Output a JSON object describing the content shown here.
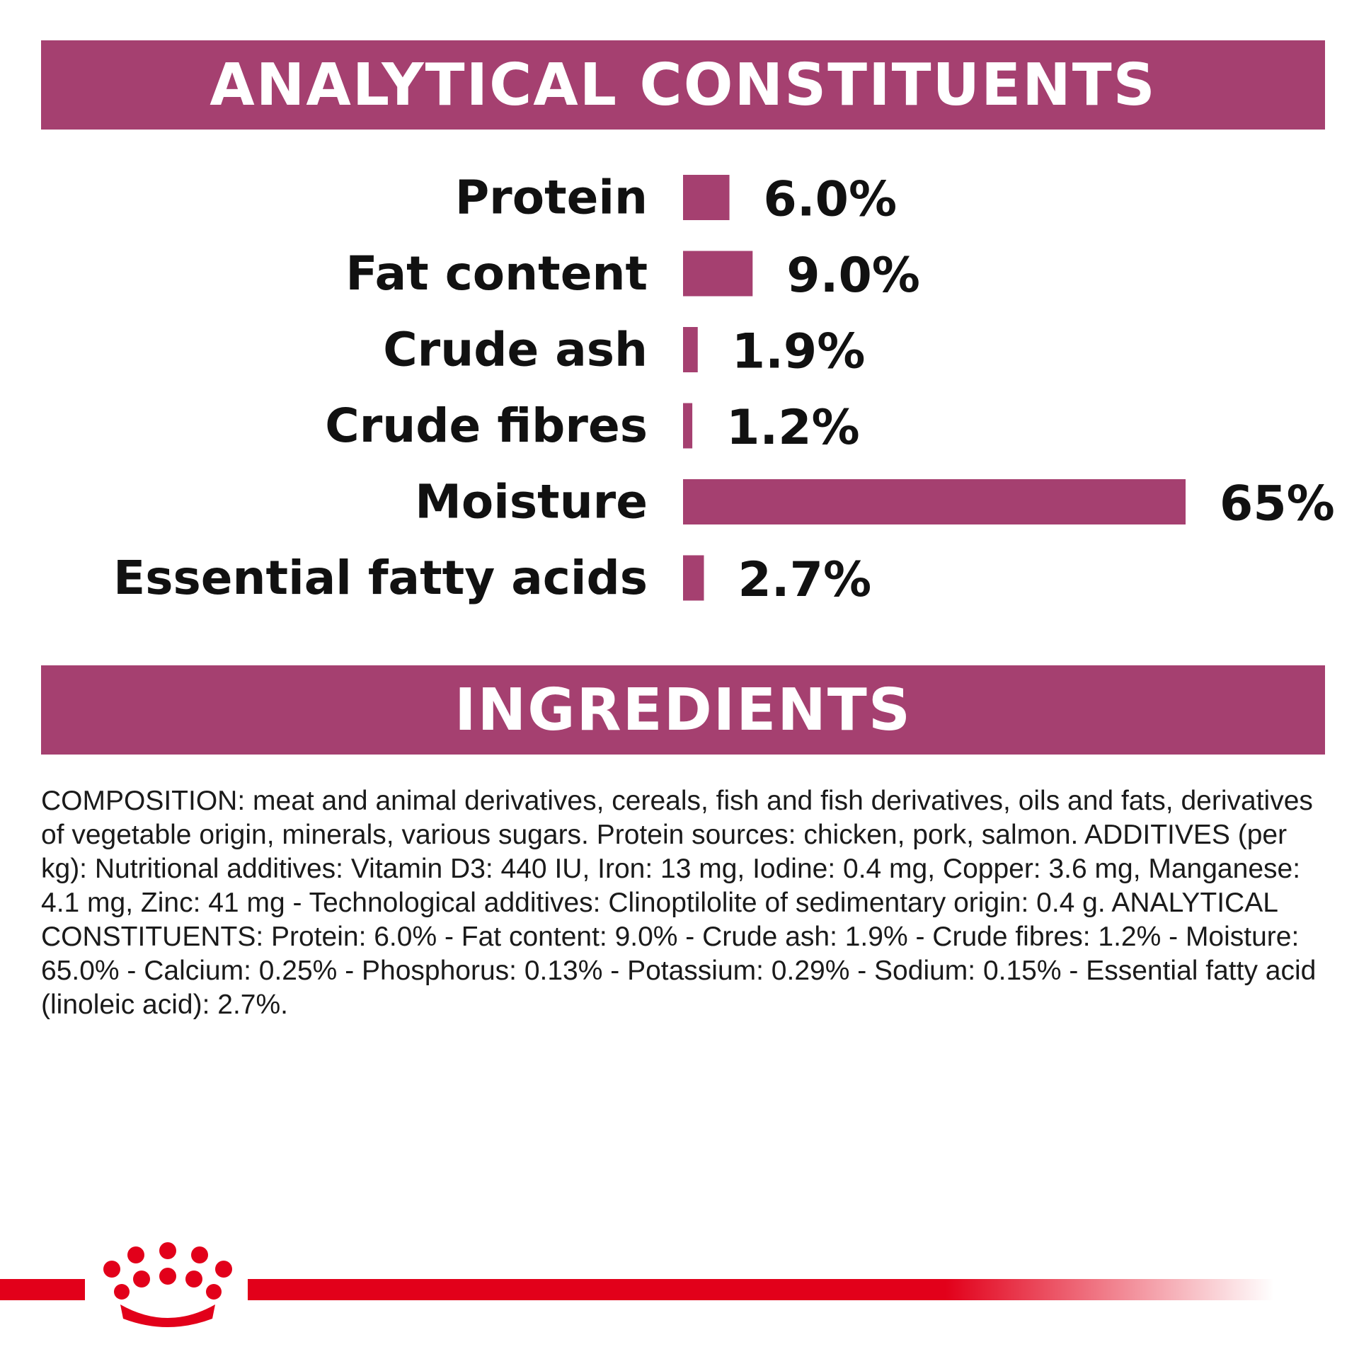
{
  "banners": {
    "analytical": "ANALYTICAL CONSTITUENTS",
    "ingredients": "INGREDIENTS"
  },
  "colors": {
    "accent": "#a54070",
    "brand_red": "#e2001a"
  },
  "chart_data": {
    "type": "bar",
    "orientation": "horizontal",
    "categories": [
      "Protein",
      "Fat content",
      "Crude ash",
      "Crude fibres",
      "Moisture",
      "Essential fatty acids"
    ],
    "values": [
      6.0,
      9.0,
      1.9,
      1.2,
      65,
      2.7
    ],
    "value_labels": [
      "6.0%",
      "9.0%",
      "1.9%",
      "1.2%",
      "65%",
      "2.7%"
    ],
    "title": "ANALYTICAL CONSTITUENTS",
    "unit": "%",
    "grid": false,
    "legend": "none"
  },
  "ingredients": {
    "composition": "COMPOSITION: meat and animal derivatives, cereals, fish and fish derivatives, oils and fats, derivatives of vegetable origin, minerals, various sugars. Protein sources: chicken, pork, salmon. ADDITIVES (per kg): Nutritional additives: Vitamin D3: 440 IU, Iron: 13 mg, Iodine: 0.4 mg, Copper: 3.6 mg, Manganese: 4.1 mg, Zinc: 41 mg - Technological additives: Clinoptilolite of sedimentary origin: 0.4 g. ANALYTICAL CONSTITUENTS: Protein: 6.0% - Fat content: 9.0% - Crude ash: 1.9% - Crude fibres: 1.2% - Moisture: 65.0% - Calcium: 0.25% - Phosphorus: 0.13% - Potassium: 0.29% - Sodium: 0.15% - Essential fatty acid (linoleic acid): 2.7%."
  },
  "footer": {
    "logo_icon": "crown-icon"
  }
}
